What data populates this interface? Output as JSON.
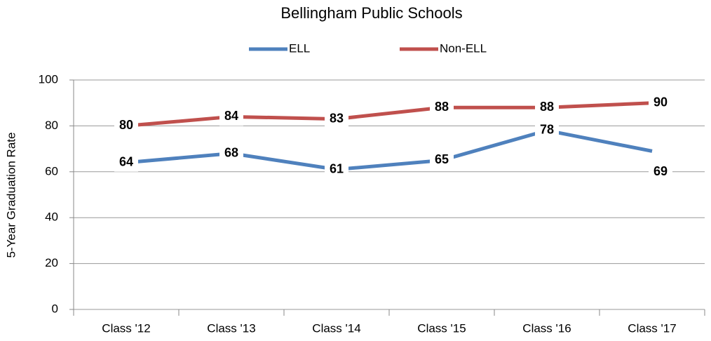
{
  "chart_data": {
    "type": "line",
    "title": "Bellingham Public Schools",
    "ylabel": "5-Year Graduation Rate",
    "categories": [
      "Class '12",
      "Class '13",
      "Class '14",
      "Class '15",
      "Class '16",
      "Class '17"
    ],
    "series": [
      {
        "name": "ELL",
        "color": "#4f81bd",
        "values": [
          64,
          68,
          61,
          65,
          78,
          69
        ]
      },
      {
        "name": "Non-ELL",
        "color": "#c0504d",
        "values": [
          80,
          84,
          83,
          88,
          88,
          90
        ]
      }
    ],
    "ylim": [
      0,
      100
    ],
    "yticks": [
      0,
      20,
      40,
      60,
      80,
      100
    ],
    "grid": true,
    "legend": "top"
  }
}
